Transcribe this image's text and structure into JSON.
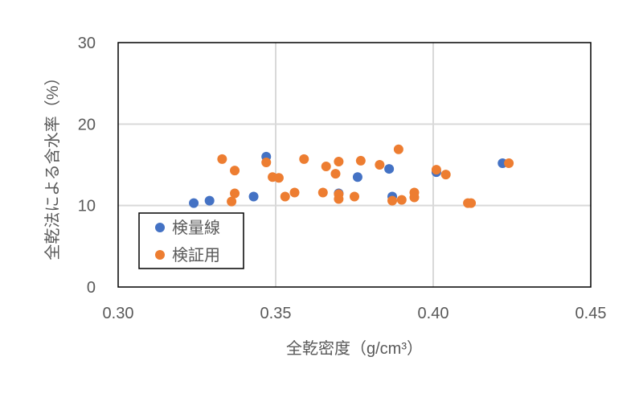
{
  "chart_data": {
    "type": "scatter",
    "xlabel": "全乾密度（g/cm³）",
    "ylabel": "全乾法による含水率（%）",
    "xlim": [
      0.3,
      0.45
    ],
    "ylim": [
      0,
      30
    ],
    "xticks": [
      "0.30",
      "0.35",
      "0.40",
      "0.45"
    ],
    "yticks": [
      "0",
      "10",
      "20",
      "30"
    ],
    "grid": true,
    "legend_position": "bottom-left",
    "series": [
      {
        "name": "検量線",
        "color": "#4472C4",
        "points": [
          [
            0.324,
            10.3
          ],
          [
            0.329,
            10.6
          ],
          [
            0.343,
            11.1
          ],
          [
            0.347,
            16.0
          ],
          [
            0.37,
            11.5
          ],
          [
            0.376,
            13.5
          ],
          [
            0.386,
            14.5
          ],
          [
            0.387,
            11.1
          ],
          [
            0.401,
            14.1
          ],
          [
            0.422,
            15.2
          ]
        ]
      },
      {
        "name": "検証用",
        "color": "#ED7D31",
        "points": [
          [
            0.333,
            15.7
          ],
          [
            0.337,
            14.3
          ],
          [
            0.337,
            11.5
          ],
          [
            0.336,
            10.5
          ],
          [
            0.347,
            15.3
          ],
          [
            0.349,
            13.5
          ],
          [
            0.351,
            13.4
          ],
          [
            0.353,
            11.1
          ],
          [
            0.356,
            11.6
          ],
          [
            0.359,
            15.7
          ],
          [
            0.365,
            11.6
          ],
          [
            0.366,
            14.8
          ],
          [
            0.369,
            13.9
          ],
          [
            0.37,
            11.4
          ],
          [
            0.37,
            10.8
          ],
          [
            0.37,
            15.4
          ],
          [
            0.375,
            11.1
          ],
          [
            0.377,
            15.5
          ],
          [
            0.383,
            15.0
          ],
          [
            0.387,
            10.6
          ],
          [
            0.389,
            16.9
          ],
          [
            0.39,
            10.7
          ],
          [
            0.394,
            11.0
          ],
          [
            0.394,
            11.6
          ],
          [
            0.401,
            14.4
          ],
          [
            0.404,
            13.8
          ],
          [
            0.411,
            10.3
          ],
          [
            0.412,
            10.3
          ],
          [
            0.424,
            15.2
          ]
        ]
      }
    ]
  }
}
